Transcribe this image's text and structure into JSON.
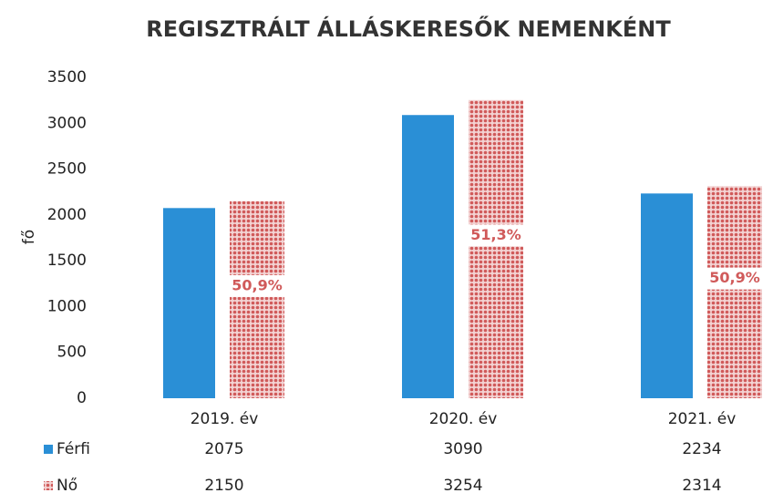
{
  "chart_data": {
    "type": "bar",
    "title": "REGISZTRÁLT ÁLLÁSKERESŐK NEMENKÉNT",
    "y_label": "fő",
    "categories": [
      "2019. év",
      "2020. év",
      "2021. év"
    ],
    "series": [
      {
        "name": "Férfi",
        "color": "#2a8fd6",
        "values": [
          2075,
          3090,
          2234
        ]
      },
      {
        "name": "Nő",
        "color": "#d05a5a",
        "values": [
          2150,
          3254,
          2314
        ]
      }
    ],
    "annotations": [
      "50,9%",
      "51,3%",
      "50,9%"
    ],
    "ylim": [
      0,
      3500
    ],
    "yticks": [
      0,
      500,
      1000,
      1500,
      2000,
      2500,
      3000,
      3500
    ],
    "grid": false,
    "data_table": true
  }
}
